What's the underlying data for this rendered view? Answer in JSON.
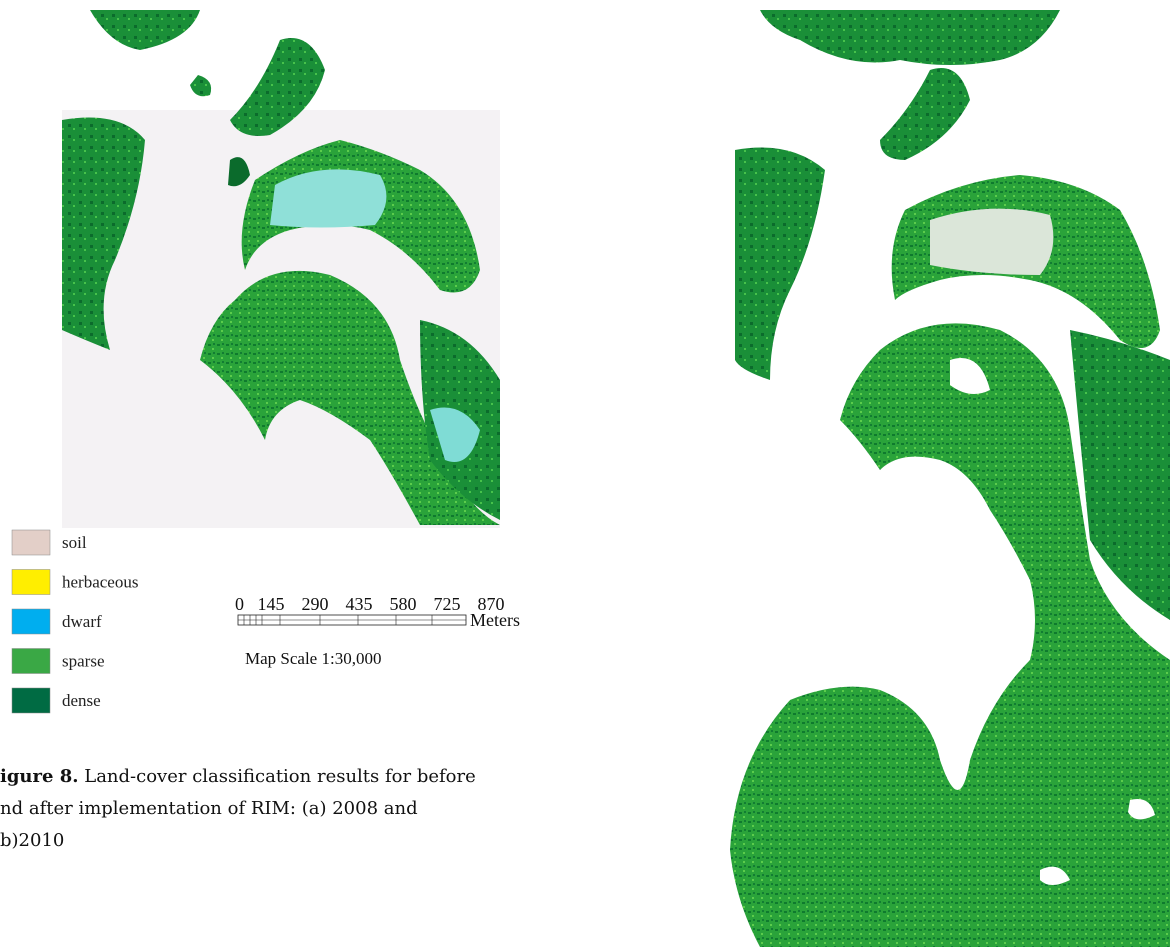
{
  "figure": {
    "legend": {
      "items": [
        {
          "label": "soil",
          "color": "#e3cfc8"
        },
        {
          "label": "herbaceous",
          "color": "#ffee00"
        },
        {
          "label": "dwarf",
          "color": "#00aeef"
        },
        {
          "label": "sparse",
          "color": "#3aa845"
        },
        {
          "label": "dense",
          "color": "#006b43"
        }
      ]
    },
    "scale": {
      "ticks": [
        "0",
        "145",
        "290",
        "435",
        "580",
        "725",
        "870"
      ],
      "unit": "Meters",
      "caption": "Map Scale 1:30,000"
    },
    "caption": {
      "label": "igure 8.",
      "lines": [
        "Land-cover classification results for before",
        "nd after implementation of RIM:  (a) 2008 and",
        "b)2010"
      ]
    }
  }
}
